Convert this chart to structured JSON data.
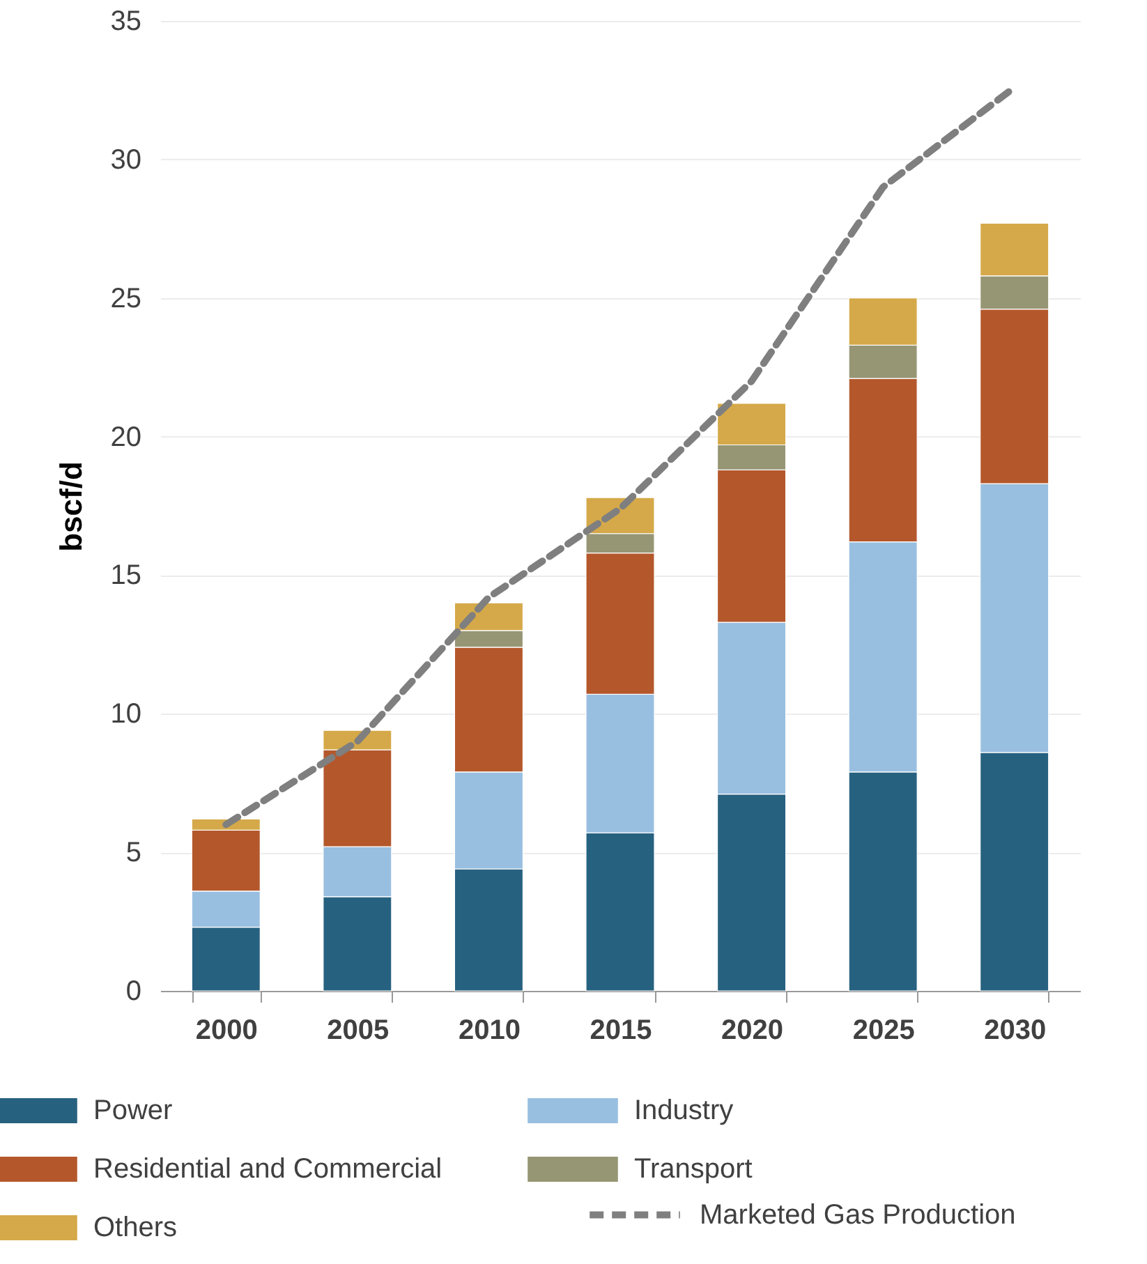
{
  "chart_data": {
    "type": "bar",
    "stacked": true,
    "ylabel": "bscf/d",
    "categories": [
      "2000",
      "2005",
      "2010",
      "2015",
      "2020",
      "2025",
      "2030"
    ],
    "ylim": [
      0,
      35
    ],
    "yticks": [
      0,
      5,
      10,
      15,
      20,
      25,
      30,
      35
    ],
    "grid": "y",
    "legend": "bottom",
    "series": [
      {
        "name": "Power",
        "color": "#276180",
        "values": [
          2.3,
          3.4,
          4.4,
          5.7,
          7.1,
          7.9,
          8.6
        ]
      },
      {
        "name": "Industry",
        "color": "#99bfe0",
        "values": [
          1.3,
          1.8,
          3.5,
          5.0,
          6.2,
          8.3,
          9.7
        ]
      },
      {
        "name": "Residential and Commercial",
        "color": "#b4582c",
        "values": [
          2.2,
          3.5,
          4.5,
          5.1,
          5.5,
          5.9,
          6.3
        ]
      },
      {
        "name": "Transport",
        "color": "#969675",
        "values": [
          0,
          0,
          0.6,
          0.7,
          0.9,
          1.2,
          1.2
        ]
      },
      {
        "name": "Others",
        "color": "#d5a949",
        "values": [
          0.4,
          0.7,
          1.0,
          1.3,
          1.5,
          1.7,
          1.9
        ]
      },
      {
        "name": "Marketed Gas Production",
        "type": "line",
        "line_style": "dashed",
        "marker": "none",
        "color": "#7f7f7f",
        "values": [
          6.0,
          9.0,
          14.2,
          17.4,
          22.0,
          29.0,
          32.6
        ]
      }
    ]
  }
}
